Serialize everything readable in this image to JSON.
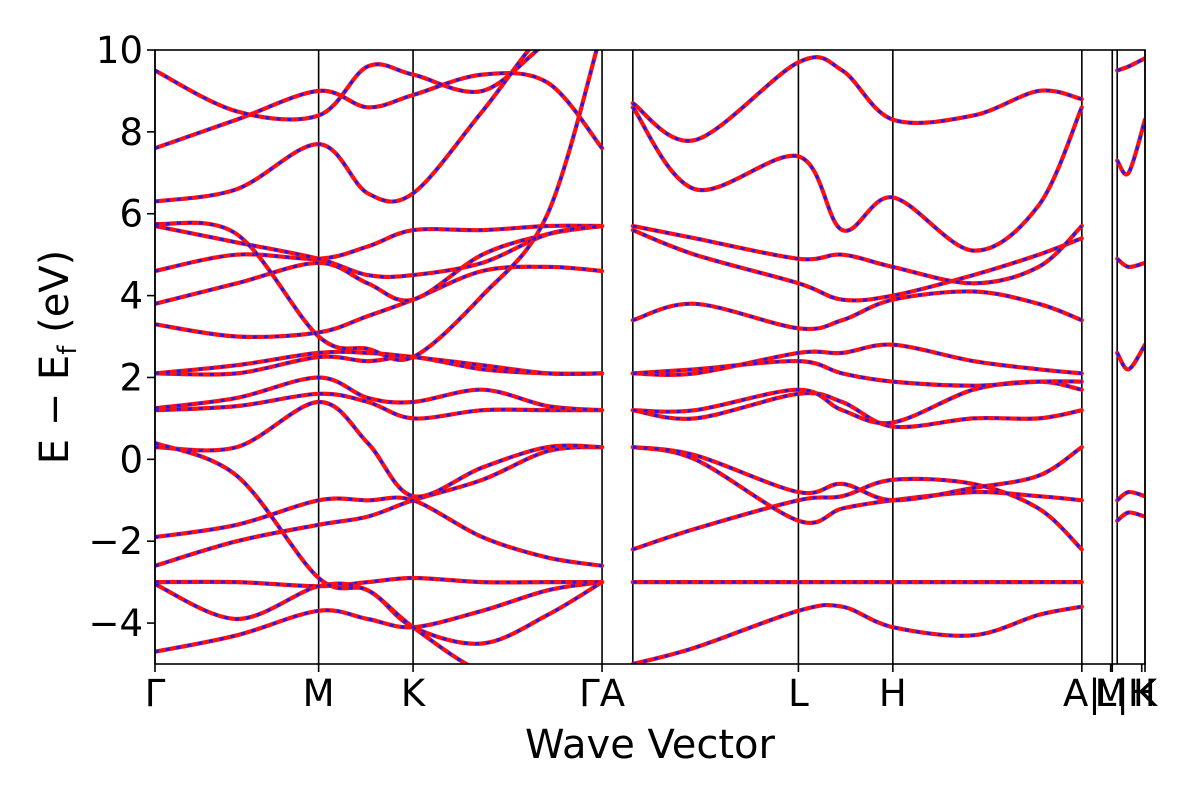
{
  "chart_data": {
    "type": "line",
    "title": "",
    "xlabel": "Wave Vector",
    "ylabel_main": "E − E",
    "ylabel_sub": "f",
    "ylabel_unit": " (eV)",
    "ylim": [
      -5,
      10
    ],
    "yticks": [
      -4,
      -2,
      0,
      2,
      4,
      6,
      8,
      10
    ],
    "ytick_labels": [
      "−4",
      "−2",
      "0",
      "2",
      "4",
      "6",
      "8",
      "10"
    ],
    "grid": false,
    "legend": "none",
    "high_symbol_points": [
      {
        "label": "Γ",
        "pos": 0.0
      },
      {
        "label": "M",
        "pos": 1.0
      },
      {
        "label": "K",
        "pos": 1.577
      },
      {
        "label": "ΓA",
        "pos": 2.732
      },
      {
        "label": "L",
        "pos": 3.932
      },
      {
        "label": "H",
        "pos": 4.509
      },
      {
        "label": "A|",
        "pos": 5.664
      },
      {
        "label": "M",
        "pos": 5.84
      },
      {
        "label": "L|",
        "pos": 5.85
      },
      {
        "label": "H",
        "pos": 6.03
      },
      {
        "label": "K",
        "pos": 6.05
      }
    ],
    "vertical_lines": [
      0.0,
      1.0,
      1.577,
      2.732,
      2.92,
      3.932,
      4.509,
      5.664,
      5.85,
      5.88,
      6.05
    ],
    "xlim": [
      0.0,
      6.05
    ],
    "series": [
      {
        "color": "#ff1010",
        "style": "solid"
      },
      {
        "color": "#1a1aff",
        "style": "dotted"
      }
    ],
    "bands": [
      {
        "x": [
          0.0,
          0.5,
          1.0,
          1.3,
          1.577,
          2.0,
          2.4,
          2.732
        ],
        "y": [
          -4.7,
          -4.3,
          -3.7,
          -3.9,
          -4.1,
          -3.7,
          -3.2,
          -3.0
        ]
      },
      {
        "x": [
          0.0,
          0.5,
          1.0,
          1.3,
          1.577,
          2.0,
          2.4,
          2.732
        ],
        "y": [
          -3.0,
          -3.0,
          -3.1,
          -3.0,
          -2.9,
          -3.0,
          -3.0,
          -3.0
        ]
      },
      {
        "x": [
          0.0,
          0.5,
          1.0,
          1.3,
          1.577,
          2.0,
          2.4,
          2.732
        ],
        "y": [
          -3.05,
          -3.9,
          -3.1,
          -3.2,
          -4.1,
          -4.5,
          -3.8,
          -3.0
        ]
      },
      {
        "x": [
          0.0,
          0.5,
          1.0,
          1.3,
          1.577,
          2.0,
          2.4,
          2.732
        ],
        "y": [
          -1.9,
          -1.6,
          -1.0,
          -1.0,
          -1.0,
          -1.9,
          -2.4,
          -2.6
        ]
      },
      {
        "x": [
          0.0,
          0.5,
          1.0,
          1.3,
          1.577,
          2.0,
          2.4,
          2.732
        ],
        "y": [
          -2.6,
          -2.0,
          -1.6,
          -1.4,
          -1.0,
          -0.5,
          0.2,
          0.3
        ]
      },
      {
        "x": [
          0.0,
          0.5,
          1.0,
          1.3,
          1.577,
          2.0,
          2.4,
          2.732
        ],
        "y": [
          0.3,
          0.3,
          1.4,
          0.4,
          -0.9,
          -0.2,
          0.3,
          0.3
        ]
      },
      {
        "x": [
          0.0,
          0.5,
          1.0,
          1.3,
          1.577,
          2.0,
          2.4,
          2.732
        ],
        "y": [
          0.4,
          -0.4,
          -2.9,
          -3.2,
          -4.1,
          -5.2,
          -5.5,
          -5.6
        ]
      },
      {
        "x": [
          0.0,
          0.5,
          1.0,
          1.3,
          1.577,
          2.0,
          2.4,
          2.732
        ],
        "y": [
          1.2,
          1.3,
          1.6,
          1.4,
          1.0,
          1.2,
          1.2,
          1.2
        ]
      },
      {
        "x": [
          0.0,
          0.5,
          1.0,
          1.3,
          1.577,
          2.0,
          2.4,
          2.732
        ],
        "y": [
          1.25,
          1.5,
          2.0,
          1.5,
          1.4,
          1.7,
          1.3,
          1.2
        ]
      },
      {
        "x": [
          0.0,
          0.5,
          1.0,
          1.3,
          1.577,
          2.0,
          2.4,
          2.732
        ],
        "y": [
          2.1,
          2.1,
          2.5,
          2.4,
          2.5,
          2.2,
          2.1,
          2.1
        ]
      },
      {
        "x": [
          0.0,
          0.5,
          1.0,
          1.3,
          1.577,
          2.0,
          2.4,
          2.732
        ],
        "y": [
          2.1,
          2.3,
          2.6,
          2.6,
          2.5,
          2.3,
          2.1,
          2.1
        ]
      },
      {
        "x": [
          0.0,
          0.5,
          1.0,
          1.3,
          1.577,
          2.0,
          2.4,
          2.732
        ],
        "y": [
          3.3,
          3.0,
          3.1,
          3.5,
          3.9,
          4.6,
          4.7,
          4.6
        ]
      },
      {
        "x": [
          0.0,
          0.5,
          1.0,
          1.3,
          1.577,
          2.0,
          2.4,
          2.732
        ],
        "y": [
          3.8,
          4.3,
          4.8,
          4.3,
          3.9,
          5.0,
          5.5,
          5.7
        ]
      },
      {
        "x": [
          0.0,
          0.5,
          1.0,
          1.3,
          1.577,
          2.0,
          2.4,
          2.732
        ],
        "y": [
          4.6,
          5.0,
          4.9,
          5.2,
          5.6,
          5.6,
          5.7,
          5.7
        ]
      },
      {
        "x": [
          0.0,
          0.5,
          1.0,
          1.3,
          1.577,
          2.0,
          2.4,
          2.732
        ],
        "y": [
          5.7,
          5.3,
          4.9,
          4.5,
          4.5,
          4.8,
          5.5,
          5.7
        ]
      },
      {
        "x": [
          0.0,
          0.5,
          1.0,
          1.3,
          1.577,
          2.0,
          2.4,
          2.732
        ],
        "y": [
          5.75,
          5.5,
          3.0,
          2.7,
          2.5,
          4.0,
          6.0,
          10.5
        ]
      },
      {
        "x": [
          0.0,
          0.5,
          1.0,
          1.3,
          1.577,
          2.0,
          2.4,
          2.732
        ],
        "y": [
          6.3,
          6.6,
          7.7,
          6.5,
          6.5,
          8.5,
          10.5,
          11.0
        ]
      },
      {
        "x": [
          0.0,
          0.5,
          1.0,
          1.3,
          1.577,
          2.0,
          2.4,
          2.732
        ],
        "y": [
          7.6,
          8.3,
          9.0,
          8.6,
          8.9,
          9.4,
          9.2,
          7.6
        ]
      },
      {
        "x": [
          0.0,
          0.5,
          1.0,
          1.3,
          1.577,
          2.0,
          2.4,
          2.732
        ],
        "y": [
          9.5,
          8.5,
          8.4,
          9.6,
          9.4,
          9.0,
          10.2,
          11.0
        ]
      },
      {
        "x": [
          2.92,
          3.3,
          3.932,
          4.2,
          4.509,
          5.0,
          5.4,
          5.664
        ],
        "y": [
          -3.0,
          -3.0,
          -3.0,
          -3.0,
          -3.0,
          -3.0,
          -3.0,
          -3.0
        ]
      },
      {
        "x": [
          2.92,
          3.3,
          3.932,
          4.2,
          4.509,
          5.0,
          5.4,
          5.664
        ],
        "y": [
          -2.2,
          -1.7,
          -1.0,
          -0.9,
          -0.5,
          -0.6,
          -1.2,
          -2.2
        ]
      },
      {
        "x": [
          2.92,
          3.3,
          3.932,
          4.2,
          4.509,
          5.0,
          5.4,
          5.664
        ],
        "y": [
          -5.0,
          -4.6,
          -3.7,
          -3.6,
          -4.1,
          -4.3,
          -3.8,
          -3.6
        ]
      },
      {
        "x": [
          2.92,
          3.3,
          3.932,
          4.2,
          4.509,
          5.0,
          5.4,
          5.664
        ],
        "y": [
          0.3,
          0.0,
          -1.5,
          -1.2,
          -1.0,
          -0.8,
          -0.9,
          -1.0
        ]
      },
      {
        "x": [
          2.92,
          3.3,
          3.932,
          4.2,
          4.509,
          5.0,
          5.4,
          5.664
        ],
        "y": [
          0.3,
          0.1,
          -0.8,
          -0.6,
          -1.0,
          -0.7,
          -0.4,
          0.3
        ]
      },
      {
        "x": [
          2.92,
          3.3,
          3.932,
          4.2,
          4.509,
          5.0,
          5.4,
          5.664
        ],
        "y": [
          1.2,
          1.0,
          1.6,
          1.4,
          0.8,
          1.0,
          1.0,
          1.2
        ]
      },
      {
        "x": [
          2.92,
          3.3,
          3.932,
          4.2,
          4.509,
          5.0,
          5.4,
          5.664
        ],
        "y": [
          1.2,
          1.2,
          1.7,
          1.2,
          0.9,
          1.7,
          1.9,
          1.7
        ]
      },
      {
        "x": [
          2.92,
          3.3,
          3.932,
          4.2,
          4.509,
          5.0,
          5.4,
          5.664
        ],
        "y": [
          2.1,
          2.1,
          2.6,
          2.6,
          2.8,
          2.4,
          2.2,
          2.1
        ]
      },
      {
        "x": [
          2.92,
          3.3,
          3.932,
          4.2,
          4.509,
          5.0,
          5.4,
          5.664
        ],
        "y": [
          2.1,
          2.2,
          2.4,
          2.1,
          1.9,
          1.8,
          1.9,
          1.9
        ]
      },
      {
        "x": [
          2.92,
          3.3,
          3.932,
          4.2,
          4.509,
          5.0,
          5.4,
          5.664
        ],
        "y": [
          3.4,
          3.8,
          3.2,
          3.4,
          3.9,
          4.1,
          3.8,
          3.4
        ]
      },
      {
        "x": [
          2.92,
          3.3,
          3.932,
          4.2,
          4.509,
          5.0,
          5.4,
          5.664
        ],
        "y": [
          5.6,
          5.0,
          4.3,
          3.9,
          4.0,
          4.5,
          5.0,
          5.4
        ]
      },
      {
        "x": [
          2.92,
          3.3,
          3.932,
          4.2,
          4.509,
          5.0,
          5.4,
          5.664
        ],
        "y": [
          5.7,
          5.4,
          4.9,
          5.0,
          4.7,
          4.3,
          4.7,
          5.7
        ]
      },
      {
        "x": [
          2.92,
          3.3,
          3.932,
          4.2,
          4.509,
          5.0,
          5.4,
          5.664
        ],
        "y": [
          8.6,
          6.6,
          7.4,
          5.6,
          6.4,
          5.1,
          6.2,
          8.6
        ]
      },
      {
        "x": [
          2.92,
          3.3,
          3.932,
          4.2,
          4.509,
          5.0,
          5.4,
          5.664
        ],
        "y": [
          8.7,
          7.8,
          9.7,
          9.5,
          8.3,
          8.4,
          9.0,
          8.8
        ]
      },
      {
        "x": [
          5.88,
          5.95,
          6.05
        ],
        "y": [
          4.9,
          4.7,
          4.8
        ]
      },
      {
        "x": [
          5.88,
          5.95,
          6.05
        ],
        "y": [
          2.6,
          2.2,
          2.8
        ]
      },
      {
        "x": [
          5.88,
          5.95,
          6.05
        ],
        "y": [
          -1.0,
          -0.8,
          -0.9
        ]
      },
      {
        "x": [
          5.88,
          5.95,
          6.05
        ],
        "y": [
          -1.5,
          -1.3,
          -1.4
        ]
      },
      {
        "x": [
          5.88,
          5.95,
          6.05
        ],
        "y": [
          9.5,
          9.6,
          9.8
        ]
      },
      {
        "x": [
          5.88,
          5.95,
          6.05
        ],
        "y": [
          7.3,
          7.0,
          8.3
        ]
      }
    ]
  }
}
